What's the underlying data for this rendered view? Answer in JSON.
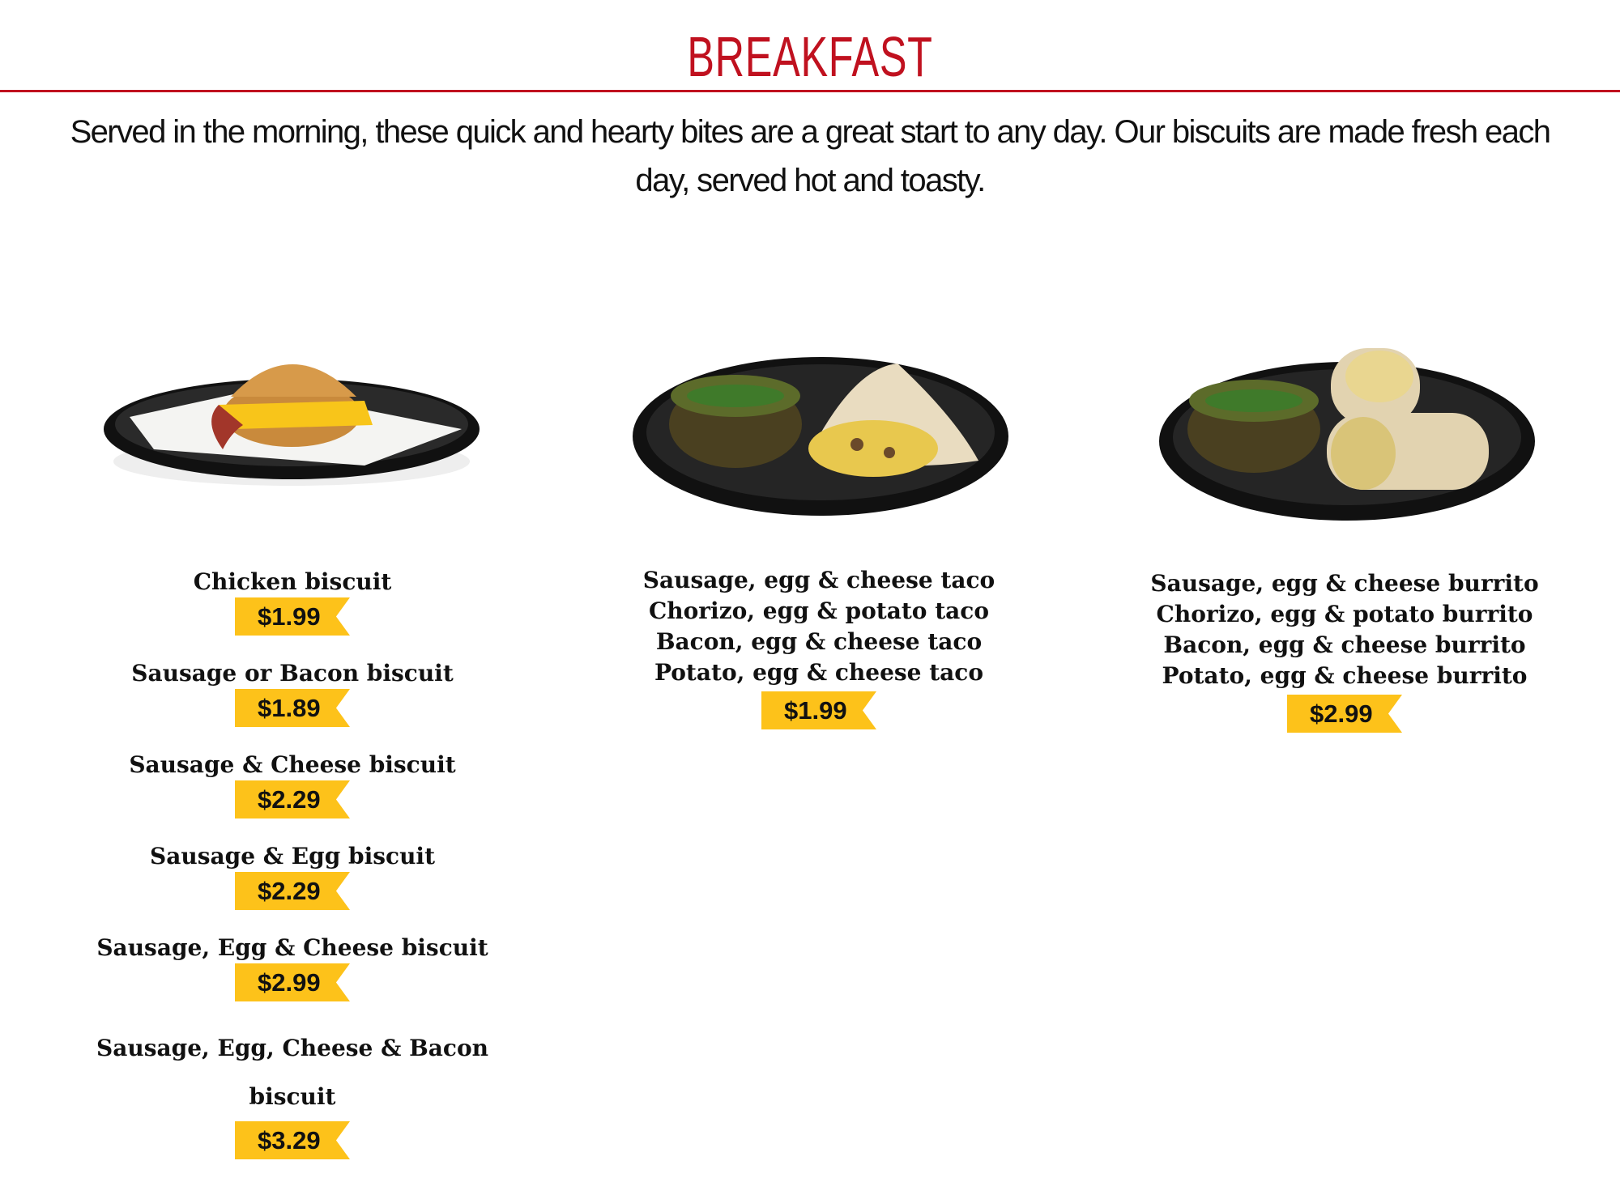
{
  "section": {
    "title": "BREAKFAST",
    "description": "Served in the morning, these quick and hearty bites are a great start to any day. Our biscuits are made fresh each day, served hot and toasty.",
    "accent_color": "#c0111f",
    "price_tag_color": "#fdc21a"
  },
  "columns": [
    {
      "image": "biscuit-sandwich-plate",
      "items": [
        {
          "name": "Chicken biscuit",
          "price": "$1.99"
        },
        {
          "name": "Sausage or Bacon biscuit",
          "price": "$1.89"
        },
        {
          "name": "Sausage & Cheese biscuit",
          "price": "$2.29"
        },
        {
          "name": "Sausage & Egg biscuit",
          "price": "$2.29"
        },
        {
          "name": "Sausage, Egg & Cheese biscuit",
          "price": "$2.99"
        },
        {
          "name": "Sausage, Egg, Cheese & Bacon biscuit",
          "price": "$3.29"
        }
      ]
    },
    {
      "image": "taco-plate-with-salsa",
      "lines": [
        "Sausage, egg & cheese taco",
        "Chorizo, egg & potato taco",
        "Bacon, egg & cheese taco",
        "Potato, egg & cheese taco"
      ],
      "price": "$1.99"
    },
    {
      "image": "burrito-plate-with-salsa",
      "lines": [
        "Sausage, egg & cheese burrito",
        "Chorizo, egg & potato burrito",
        "Bacon, egg & cheese burrito",
        "Potato, egg & cheese burrito"
      ],
      "price": "$2.99"
    }
  ]
}
